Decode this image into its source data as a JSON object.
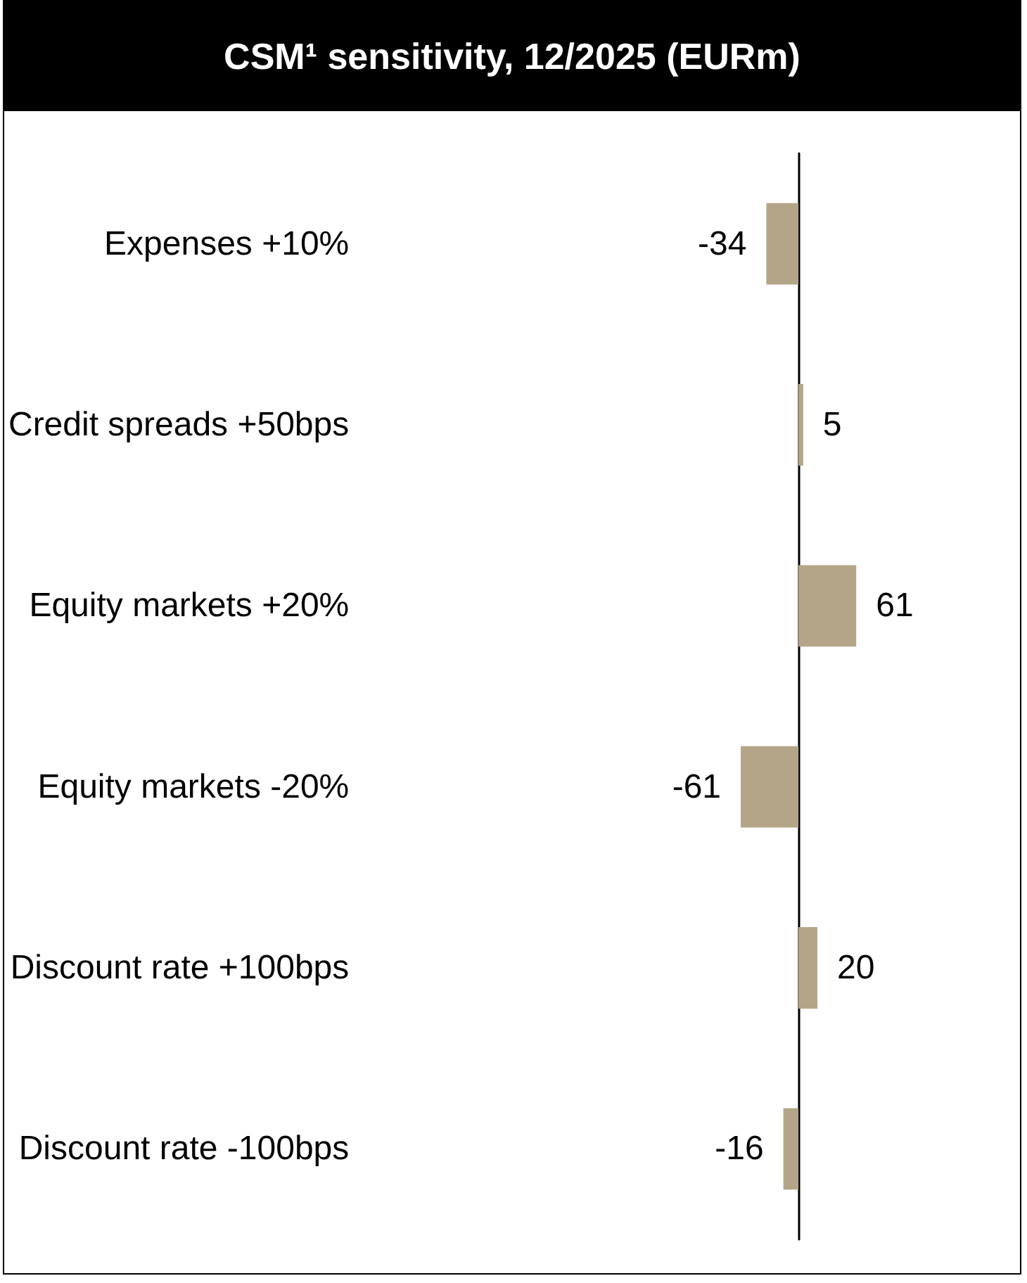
{
  "chart_data": {
    "type": "bar",
    "orientation": "horizontal",
    "title": "CSM¹ sensitivity, 12/2025 (EURm)",
    "categories": [
      "Expenses +10%",
      "Credit spreads +50bps",
      "Equity markets +20%",
      "Equity markets -20%",
      "Discount rate +100bps",
      "Discount rate -100bps"
    ],
    "values": [
      -34,
      5,
      61,
      -61,
      20,
      -16
    ],
    "color": "#b5a588",
    "tick_labels": "y",
    "data_labels": true
  }
}
